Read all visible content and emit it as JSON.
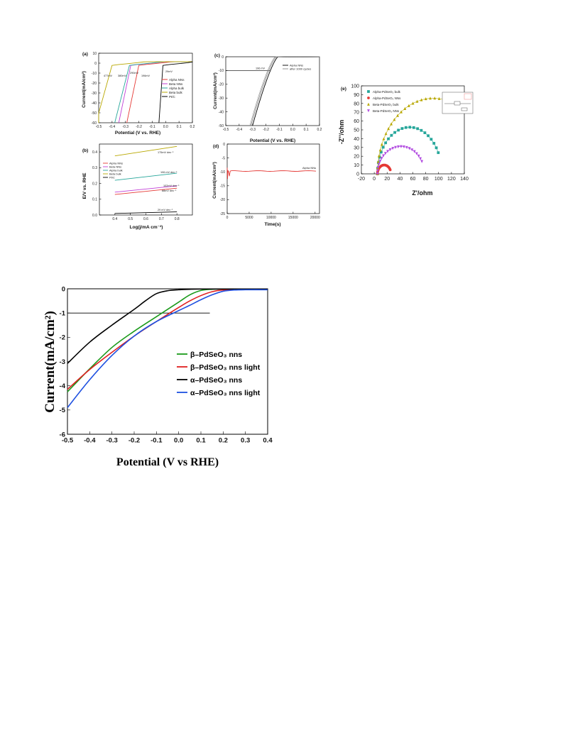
{
  "chart_data": [
    {
      "panel": "(a)",
      "type": "line",
      "xlabel": "Potential (V vs. RHE)",
      "ylabel": "Current(mA/cm²)",
      "xlim": [
        -0.5,
        0.2
      ],
      "ylim": [
        -60,
        10
      ],
      "xticks": [
        "-0.5",
        "-0.4",
        "-0.3",
        "-0.2",
        "-0.1",
        "0.0",
        "0.1",
        "0.2"
      ],
      "yticks": [
        "10",
        "0",
        "-10",
        "-20",
        "-30",
        "-40",
        "-50",
        "-60"
      ],
      "legend": "right",
      "annotations": [
        "477mV",
        "380mV",
        "290mV",
        "196mV",
        "29mV"
      ],
      "series": [
        {
          "name": "Alpha NNs",
          "color": "#e53935",
          "onset": -0.2,
          "at_minus60": -0.29
        },
        {
          "name": "Beta NNs",
          "color": "#c13fd6",
          "onset": -0.26,
          "at_minus60": -0.35
        },
        {
          "name": "Alpha bulk",
          "color": "#26a69a",
          "onset": -0.27,
          "at_minus60": -0.38
        },
        {
          "name": "Beta bulk",
          "color": "#b8a700",
          "onset": -0.4,
          "at_minus60": -0.52
        },
        {
          "name": "Pt/C",
          "color": "#000000",
          "onset": -0.02,
          "at_minus60": -0.05
        }
      ]
    },
    {
      "panel": "(b)",
      "type": "line",
      "xlabel": "Log(j/mA cm⁻²)",
      "ylabel": "E/V vs. RHE",
      "xlim": [
        0.3,
        0.9
      ],
      "ylim": [
        0.0,
        0.45
      ],
      "xticks": [
        "0.4",
        "0.5",
        "0.6",
        "0.7",
        "0.8"
      ],
      "yticks": [
        "0.0",
        "0.1",
        "0.2",
        "0.3",
        "0.4"
      ],
      "legend": "upper-left",
      "series": [
        {
          "name": "Alpha NNs",
          "color": "#e53935",
          "x": [
            0.4,
            0.8
          ],
          "y": [
            0.13,
            0.17
          ],
          "label": "88mV dec⁻¹"
        },
        {
          "name": "Beta NNs",
          "color": "#c13fd6",
          "x": [
            0.4,
            0.8
          ],
          "y": [
            0.145,
            0.185
          ],
          "label": "102mV dec⁻¹"
        },
        {
          "name": "Alpha bulk",
          "color": "#26a69a",
          "x": [
            0.4,
            0.8
          ],
          "y": [
            0.22,
            0.265
          ],
          "label": "106 mV dec⁻¹"
        },
        {
          "name": "Beta bulk",
          "color": "#b8a700",
          "x": [
            0.4,
            0.8
          ],
          "y": [
            0.375,
            0.435
          ],
          "label": "175mV dec⁻¹"
        },
        {
          "name": "Pt/C",
          "color": "#000000",
          "x": [
            0.4,
            0.8
          ],
          "y": [
            0.01,
            0.02
          ],
          "label": "29 mV dec⁻¹"
        }
      ]
    },
    {
      "panel": "(c)",
      "type": "line",
      "xlabel": "Potential (V vs. RHE)",
      "ylabel": "Current(mA/cm²)",
      "xlim": [
        -0.5,
        0.2
      ],
      "ylim": [
        -50,
        0
      ],
      "xticks": [
        "-0.5",
        "-0.4",
        "-0.3",
        "-0.2",
        "-0.1",
        "0.0",
        "0.1",
        "0.2"
      ],
      "yticks": [
        "0",
        "-10",
        "-20",
        "-30",
        "-40",
        "-50"
      ],
      "legend": "upper-right",
      "annotation": "196 mV",
      "series": [
        {
          "name": "Alpha NNs",
          "color": "#000000"
        },
        {
          "name": "after 1000 cycles",
          "color": "#888888"
        }
      ]
    },
    {
      "panel": "(d)",
      "type": "line",
      "xlabel": "Time(s)",
      "ylabel": "Current(mA/cm²)",
      "xlim": [
        0,
        21000
      ],
      "ylim": [
        -25,
        0
      ],
      "xticks": [
        "0",
        "5000",
        "10000",
        "15000",
        "20000"
      ],
      "yticks": [
        "0",
        "-5",
        "-10",
        "-15",
        "-20",
        "-25"
      ],
      "series": [
        {
          "name": "Alpha NNs",
          "color": "#e53935",
          "value": -9.7
        }
      ]
    },
    {
      "panel": "(e)",
      "type": "scatter",
      "xlabel": "Z'/ohm",
      "ylabel": "-Z''/ohm",
      "xlim": [
        -20,
        140
      ],
      "ylim": [
        0,
        100
      ],
      "xticks": [
        "-20",
        "0",
        "20",
        "40",
        "60",
        "80",
        "100",
        "120",
        "140"
      ],
      "yticks": [
        "0",
        "10",
        "20",
        "30",
        "40",
        "50",
        "60",
        "70",
        "80",
        "90",
        "100"
      ],
      "legend": "upper-left",
      "series": [
        {
          "name": "Alpha-PdSeO₃ bulk",
          "color": "#26a69a",
          "marker": "square",
          "z0": 5,
          "z1": 105,
          "zpeak": 53
        },
        {
          "name": "Alpha-PdSeO₃ NNs",
          "color": "#e53935",
          "marker": "circle",
          "z0": 5,
          "z1": 26,
          "zpeak": 10
        },
        {
          "name": "Beta-PdSeO₃ bulk",
          "color": "#b8a700",
          "marker": "triangle-up",
          "z0": 5,
          "z1": 178,
          "zpeak": 86
        },
        {
          "name": "Beta-PdSeO₃ NNs",
          "color": "#b24de0",
          "marker": "triangle-down",
          "z0": 5,
          "z1": 78,
          "zpeak": 31
        }
      ]
    },
    {
      "panel": "main",
      "type": "line",
      "xlabel": "Potential (V vs RHE)",
      "ylabel": "Current(mA/cm²)",
      "xlim": [
        -0.5,
        0.4
      ],
      "ylim": [
        -6,
        0
      ],
      "xticks": [
        "-0.5",
        "-0.4",
        "-0.3",
        "-0.2",
        "-0.1",
        "0.0",
        "0.1",
        "0.2",
        "0.3",
        "0.4"
      ],
      "yticks": [
        "0",
        "-1",
        "-2",
        "-3",
        "-4",
        "-5",
        "-6"
      ],
      "reference_line": {
        "y": -1,
        "x": [
          -0.5,
          0.14
        ]
      },
      "legend": "right",
      "series": [
        {
          "name": "β–PdSeO₃ nns",
          "color": "#1a9a1a",
          "x": [
            -0.5,
            -0.4,
            -0.3,
            -0.2,
            -0.1,
            0.0,
            0.05,
            0.1,
            0.15,
            0.2,
            0.3,
            0.4
          ],
          "y": [
            -4.25,
            -3.3,
            -2.42,
            -1.75,
            -1.15,
            -0.55,
            -0.25,
            -0.07,
            -0.02,
            -0.01,
            -0.01,
            -0.01
          ]
        },
        {
          "name": "β–PdSeO₃ nns light",
          "color": "#e02020",
          "x": [
            -0.5,
            -0.4,
            -0.3,
            -0.2,
            -0.1,
            0.0,
            0.05,
            0.1,
            0.15,
            0.2,
            0.3,
            0.4
          ],
          "y": [
            -4.15,
            -3.33,
            -2.62,
            -1.95,
            -1.35,
            -0.77,
            -0.5,
            -0.28,
            -0.12,
            -0.05,
            -0.02,
            -0.02
          ]
        },
        {
          "name": "α–PdSeO₃ nns",
          "color": "#000000",
          "x": [
            -0.5,
            -0.4,
            -0.3,
            -0.2,
            -0.15,
            -0.1,
            -0.05,
            0.0,
            0.05,
            0.1,
            0.2,
            0.3,
            0.4
          ],
          "y": [
            -3.08,
            -2.2,
            -1.5,
            -0.85,
            -0.5,
            -0.2,
            -0.08,
            -0.04,
            -0.02,
            -0.01,
            -0.01,
            -0.01,
            -0.01
          ]
        },
        {
          "name": "α–PdSeO₃ nns light",
          "color": "#1e50e0",
          "x": [
            -0.5,
            -0.4,
            -0.3,
            -0.2,
            -0.1,
            0.0,
            0.05,
            0.1,
            0.15,
            0.2,
            0.25,
            0.3,
            0.4
          ],
          "y": [
            -4.9,
            -3.75,
            -2.75,
            -1.95,
            -1.35,
            -0.9,
            -0.68,
            -0.45,
            -0.25,
            -0.1,
            -0.05,
            -0.04,
            -0.04
          ]
        }
      ]
    }
  ]
}
